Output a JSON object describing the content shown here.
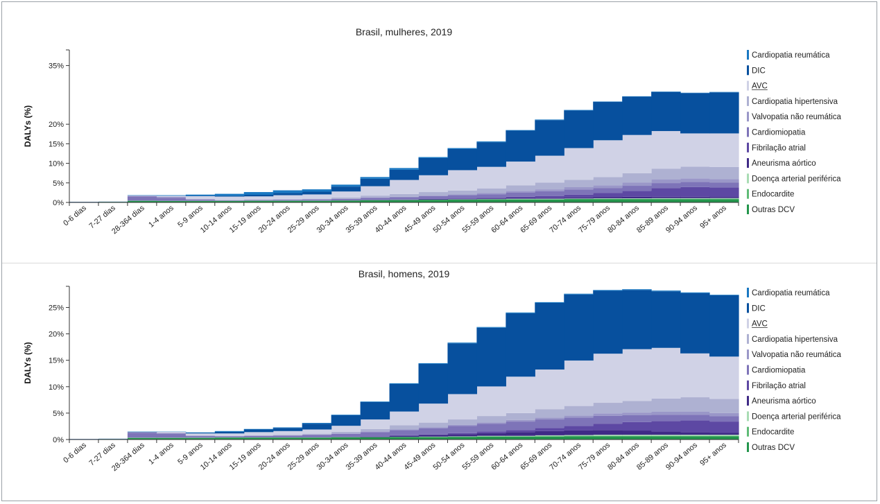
{
  "colors": {
    "Cardiopatia reumática": "#1a78c2",
    "DIC": "#07509e",
    "AVC": "#d0d2e6",
    "Cardiopatia hipertensiva": "#aeb1d2",
    "Valvopatia não reumática": "#9a97c8",
    "Cardiomiopatia": "#7e74b8",
    "Fibrilação atrial": "#5d48a3",
    "Aneurisma aórtico": "#3f2a86",
    "Doença arterial periférica": "#a9dcb4",
    "Endocardite": "#5fbb76",
    "Outras DCV": "#23964c"
  },
  "legend_underlined": "AVC",
  "chart_data": [
    {
      "type": "area",
      "title": "Brasil, mulheres, 2019",
      "ylabel": "DALYs (%)",
      "ylim": [
        0,
        39
      ],
      "y_ticks": [
        0,
        5,
        10,
        15,
        20,
        35
      ],
      "y_tick_labels": [
        "0%",
        "5%",
        "10%",
        "15%",
        "20%",
        "35%"
      ],
      "categories": [
        "0-6 dias",
        "7-27 dias",
        "28-364 dias",
        "1-4 anos",
        "5-9 anos",
        "10-14 anos",
        "15-19 anos",
        "20-24 anos",
        "25-29 anos",
        "30-34 anos",
        "35-39 anos",
        "40-44 anos",
        "45-49 anos",
        "50-54 anos",
        "55-59 anos",
        "60-64 anos",
        "65-69 anos",
        "70-74 anos",
        "75-79 anos",
        "80-84 anos",
        "85-89 anos",
        "90-94 anos",
        "95+ anos"
      ],
      "series": [
        {
          "name": "Outras DCV",
          "values": [
            0.1,
            0.15,
            0.4,
            0.35,
            0.35,
            0.35,
            0.4,
            0.4,
            0.4,
            0.45,
            0.55,
            0.6,
            0.65,
            0.7,
            0.7,
            0.75,
            0.75,
            0.8,
            0.8,
            0.8,
            0.85,
            0.85,
            0.85
          ]
        },
        {
          "name": "Endocardite",
          "values": [
            0,
            0,
            0.05,
            0.05,
            0.05,
            0.05,
            0.05,
            0.05,
            0.05,
            0.05,
            0.05,
            0.05,
            0.05,
            0.05,
            0.1,
            0.1,
            0.1,
            0.1,
            0.1,
            0.1,
            0.1,
            0.1,
            0.1
          ]
        },
        {
          "name": "Doença arterial periférica",
          "values": [
            0,
            0,
            0,
            0,
            0,
            0,
            0,
            0,
            0,
            0,
            0,
            0,
            0,
            0.05,
            0.05,
            0.1,
            0.1,
            0.1,
            0.15,
            0.15,
            0.15,
            0.15,
            0.15
          ]
        },
        {
          "name": "Aneurisma aórtico",
          "values": [
            0,
            0,
            0,
            0,
            0,
            0,
            0,
            0,
            0,
            0.05,
            0.05,
            0.05,
            0.1,
            0.1,
            0.15,
            0.2,
            0.25,
            0.3,
            0.35,
            0.4,
            0.35,
            0.35,
            0.3
          ]
        },
        {
          "name": "Fibrilação atrial",
          "values": [
            0,
            0,
            0,
            0,
            0,
            0,
            0,
            0,
            0,
            0,
            0.05,
            0.05,
            0.1,
            0.15,
            0.2,
            0.3,
            0.45,
            0.7,
            1.0,
            1.5,
            2.2,
            2.5,
            2.4
          ]
        },
        {
          "name": "Cardiomiopatia",
          "values": [
            0,
            0,
            1.1,
            0.8,
            0.3,
            0.15,
            0.2,
            0.25,
            0.3,
            0.35,
            0.5,
            0.6,
            0.7,
            0.8,
            0.9,
            1.1,
            1.2,
            1.3,
            1.3,
            1.3,
            1.3,
            1.3,
            1.25
          ]
        },
        {
          "name": "Valvopatia não reumática",
          "values": [
            0,
            0,
            0.15,
            0.25,
            0.15,
            0.05,
            0.05,
            0.05,
            0.05,
            0.05,
            0.05,
            0.1,
            0.15,
            0.2,
            0.3,
            0.4,
            0.5,
            0.6,
            0.7,
            0.8,
            0.9,
            0.9,
            0.9
          ]
        },
        {
          "name": "Cardiopatia hipertensiva",
          "values": [
            0,
            0,
            0,
            0,
            0,
            0,
            0.05,
            0.1,
            0.15,
            0.3,
            0.5,
            0.7,
            0.9,
            1.0,
            1.2,
            1.4,
            1.7,
            1.9,
            2.1,
            2.4,
            2.8,
            3.0,
            3.1
          ]
        },
        {
          "name": "AVC",
          "values": [
            0,
            0,
            0.05,
            0.25,
            0.75,
            0.9,
            0.8,
            1.0,
            1.1,
            1.55,
            2.4,
            3.6,
            4.3,
            5.2,
            5.5,
            6.1,
            6.9,
            8.1,
            9.4,
            9.8,
            9.6,
            8.5,
            8.6
          ]
        },
        {
          "name": "DIC",
          "values": [
            0.05,
            0.05,
            0,
            0,
            0.1,
            0.2,
            0.4,
            0.55,
            0.7,
            1.25,
            1.9,
            2.6,
            4.4,
            5.4,
            6.3,
            7.9,
            9.1,
            9.6,
            9.8,
            9.8,
            10.0,
            10.3,
            10.5
          ]
        },
        {
          "name": "Cardiopatia reumática",
          "values": [
            0,
            0,
            0.1,
            0.15,
            0.3,
            0.5,
            0.7,
            0.7,
            0.6,
            0.5,
            0.45,
            0.45,
            0.25,
            0.25,
            0.2,
            0.15,
            0.15,
            0.15,
            0.1,
            0.1,
            0.1,
            0.1,
            0.1
          ]
        }
      ]
    },
    {
      "type": "area",
      "title": "Brasil, homens, 2019",
      "ylabel": "DALYs (%)",
      "ylim": [
        0,
        29
      ],
      "y_ticks": [
        0,
        5,
        10,
        15,
        20,
        25
      ],
      "y_tick_labels": [
        "0%",
        "5%",
        "10%",
        "15%",
        "20%",
        "25%"
      ],
      "categories": [
        "0-6 dias",
        "7-27 dias",
        "28-364 dias",
        "1-4 anos",
        "5-9 anos",
        "10-14 anos",
        "15-19 anos",
        "20-24 anos",
        "25-29 anos",
        "30-34 anos",
        "35-39 anos",
        "40-44 anos",
        "45-49 anos",
        "50-54 anos",
        "55-59 anos",
        "60-64 anos",
        "65-69 anos",
        "70-74 anos",
        "75-79 anos",
        "80-84 anos",
        "85-89 anos",
        "90-94 anos",
        "95+ anos"
      ],
      "series": [
        {
          "name": "Outras DCV",
          "values": [
            0.05,
            0.1,
            0.3,
            0.3,
            0.3,
            0.35,
            0.35,
            0.35,
            0.35,
            0.4,
            0.4,
            0.45,
            0.45,
            0.5,
            0.55,
            0.55,
            0.55,
            0.6,
            0.6,
            0.6,
            0.6,
            0.6,
            0.6
          ]
        },
        {
          "name": "Endocardite",
          "values": [
            0,
            0,
            0.05,
            0.05,
            0.05,
            0.05,
            0.05,
            0.05,
            0.05,
            0.05,
            0.05,
            0.05,
            0.05,
            0.05,
            0.05,
            0.05,
            0.1,
            0.1,
            0.1,
            0.1,
            0.1,
            0.1,
            0.1
          ]
        },
        {
          "name": "Doença arterial periférica",
          "values": [
            0,
            0,
            0,
            0,
            0,
            0,
            0,
            0,
            0,
            0,
            0,
            0,
            0.05,
            0.05,
            0.1,
            0.1,
            0.15,
            0.15,
            0.2,
            0.2,
            0.2,
            0.2,
            0.2
          ]
        },
        {
          "name": "Aneurisma aórtico",
          "values": [
            0,
            0,
            0,
            0,
            0,
            0,
            0,
            0,
            0,
            0.05,
            0.1,
            0.2,
            0.3,
            0.4,
            0.5,
            0.7,
            0.8,
            0.9,
            0.9,
            0.8,
            0.6,
            0.5,
            0.4
          ]
        },
        {
          "name": "Fibrilação atrial",
          "values": [
            0,
            0,
            0,
            0,
            0,
            0,
            0,
            0,
            0,
            0,
            0.05,
            0.1,
            0.1,
            0.2,
            0.3,
            0.4,
            0.6,
            0.8,
            1.2,
            1.6,
            2.0,
            2.2,
            2.1
          ]
        },
        {
          "name": "Cardiomiopatia",
          "values": [
            0,
            0,
            0.9,
            0.7,
            0.3,
            0.2,
            0.3,
            0.35,
            0.5,
            0.6,
            0.8,
            1.0,
            1.2,
            1.4,
            1.5,
            1.6,
            1.6,
            1.6,
            1.5,
            1.3,
            1.2,
            1.1,
            1.0
          ]
        },
        {
          "name": "Valvopatia não reumática",
          "values": [
            0,
            0,
            0.15,
            0.2,
            0.1,
            0.05,
            0.05,
            0.05,
            0.05,
            0.05,
            0.1,
            0.1,
            0.15,
            0.2,
            0.25,
            0.3,
            0.35,
            0.4,
            0.45,
            0.5,
            0.55,
            0.6,
            0.6
          ]
        },
        {
          "name": "Cardiopatia hipertensiva",
          "values": [
            0,
            0,
            0,
            0,
            0,
            0,
            0.05,
            0.1,
            0.15,
            0.3,
            0.5,
            0.8,
            0.9,
            1.0,
            1.2,
            1.3,
            1.6,
            1.8,
            2.0,
            2.2,
            2.5,
            2.7,
            2.7
          ]
        },
        {
          "name": "AVC",
          "values": [
            0,
            0,
            0,
            0.2,
            0.4,
            0.5,
            0.6,
            0.7,
            0.8,
            1.15,
            1.8,
            2.6,
            3.6,
            4.8,
            5.6,
            6.9,
            7.5,
            8.6,
            9.3,
            9.8,
            9.6,
            8.3,
            8.0
          ]
        },
        {
          "name": "DIC",
          "values": [
            0.05,
            0.05,
            0.05,
            0,
            0.1,
            0.3,
            0.5,
            0.6,
            1.1,
            2.0,
            3.3,
            5.2,
            7.5,
            9.6,
            11.1,
            12.0,
            12.6,
            12.5,
            11.9,
            11.2,
            10.7,
            11.4,
            11.6
          ]
        },
        {
          "name": "Cardiopatia reumática",
          "values": [
            0,
            0,
            0.05,
            0.05,
            0.1,
            0.15,
            0.1,
            0.1,
            0.15,
            0.1,
            0.1,
            0.15,
            0.15,
            0.15,
            0.15,
            0.15,
            0.15,
            0.15,
            0.15,
            0.15,
            0.15,
            0.15,
            0.1
          ]
        }
      ]
    }
  ]
}
